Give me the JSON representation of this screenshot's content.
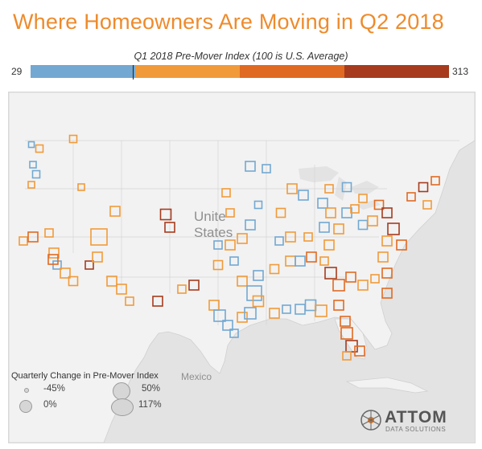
{
  "title": "Where Homeowners Are Moving in Q2 2018",
  "color_legend": {
    "title": "Q1 2018 Pre-Mover Index (100 is U.S. Average)",
    "min_label": "29",
    "max_label": "313",
    "colors": [
      "#73a8d2",
      "#f19a3a",
      "#e06a22",
      "#a63b1e"
    ]
  },
  "map": {
    "country_label": "United States",
    "country_label_line1": "Unite",
    "country_label_line2": "States",
    "mexico_label": "Mexico"
  },
  "size_legend": {
    "title": "Quarterly Change in Pre-Mover Index",
    "items": [
      {
        "label": "-45%"
      },
      {
        "label": "0%"
      },
      {
        "label": "50%"
      },
      {
        "label": "117%"
      }
    ]
  },
  "brand": {
    "name": "ATTOM",
    "tagline": "DATA SOLUTIONS"
  }
}
